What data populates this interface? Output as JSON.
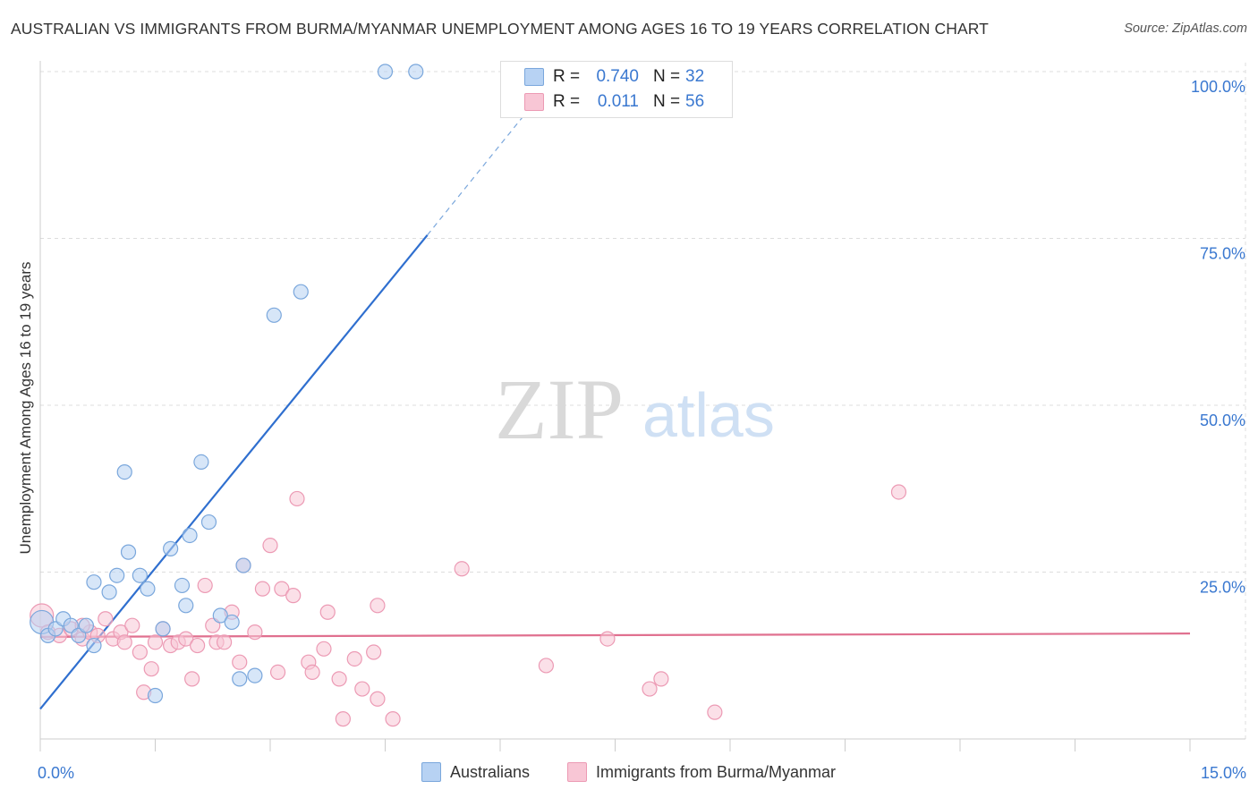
{
  "header": {
    "title": "AUSTRALIAN VS IMMIGRANTS FROM BURMA/MYANMAR UNEMPLOYMENT AMONG AGES 16 TO 19 YEARS CORRELATION CHART",
    "source": "Source: ZipAtlas.com"
  },
  "watermark": {
    "zip": "ZIP",
    "atlas": "atlas"
  },
  "legend": {
    "r_label": "R =",
    "n_label": "N =",
    "rows": [
      {
        "r": "0.740",
        "n": "32"
      },
      {
        "r": "0.011",
        "n": "56"
      }
    ]
  },
  "colors": {
    "blue_fill": "#b7d2f3",
    "blue_stroke": "#7aa7dc",
    "blue_line": "#2f6fcf",
    "pink_fill": "#f8c6d5",
    "pink_stroke": "#ec9ab4",
    "pink_line": "#e0708f",
    "axis_text": "#3a78d0",
    "grid": "#dddddd"
  },
  "chart_data": {
    "type": "scatter",
    "title": "AUSTRALIAN VS IMMIGRANTS FROM BURMA/MYANMAR UNEMPLOYMENT AMONG AGES 16 TO 19 YEARS CORRELATION CHART",
    "xlabel": "",
    "ylabel": "Unemployment Among Ages 16 to 19 years",
    "xlim": [
      0,
      15
    ],
    "ylim": [
      0,
      100
    ],
    "x_tick_labels": [
      "0.0%",
      "15.0%"
    ],
    "y_tick_labels": [
      "25.0%",
      "50.0%",
      "75.0%",
      "100.0%"
    ],
    "y_ticks": [
      25,
      50,
      75,
      100
    ],
    "grid": true,
    "series": [
      {
        "name": "Australians",
        "color": "#b7d2f3",
        "R": 0.74,
        "N": 32,
        "trend": {
          "x0": 0,
          "y0": 4.5,
          "x1": 5.05,
          "y1": 75.5,
          "dashed_to": {
            "x": 6.35,
            "y": 94
          }
        },
        "points": [
          [
            0.02,
            17.5
          ],
          [
            0.1,
            15.5
          ],
          [
            0.2,
            16.5
          ],
          [
            0.3,
            18.0
          ],
          [
            0.4,
            17.0
          ],
          [
            0.5,
            15.5
          ],
          [
            0.6,
            17.0
          ],
          [
            0.7,
            14.0
          ],
          [
            0.7,
            23.5
          ],
          [
            0.9,
            22.0
          ],
          [
            1.0,
            24.5
          ],
          [
            1.1,
            40.0
          ],
          [
            1.15,
            28.0
          ],
          [
            1.3,
            24.5
          ],
          [
            1.4,
            22.5
          ],
          [
            1.5,
            6.5
          ],
          [
            1.6,
            16.5
          ],
          [
            1.7,
            28.5
          ],
          [
            1.85,
            23.0
          ],
          [
            1.9,
            20.0
          ],
          [
            1.95,
            30.5
          ],
          [
            2.1,
            41.5
          ],
          [
            2.2,
            32.5
          ],
          [
            2.35,
            18.5
          ],
          [
            2.5,
            17.5
          ],
          [
            2.6,
            9.0
          ],
          [
            2.65,
            26.0
          ],
          [
            2.8,
            9.5
          ],
          [
            3.05,
            63.5
          ],
          [
            3.4,
            67.0
          ],
          [
            4.5,
            100.0
          ],
          [
            4.9,
            100.0
          ]
        ]
      },
      {
        "name": "Immigrants from Burma/Myanmar",
        "color": "#f8c6d5",
        "R": 0.011,
        "N": 56,
        "trend": {
          "x0": 0,
          "y0": 15.3,
          "x1": 15,
          "y1": 15.8
        },
        "points": [
          [
            0.02,
            18.5
          ],
          [
            0.1,
            16.0
          ],
          [
            0.25,
            15.5
          ],
          [
            0.4,
            16.5
          ],
          [
            0.55,
            15.0
          ],
          [
            0.65,
            16.0
          ],
          [
            0.75,
            15.5
          ],
          [
            0.85,
            18.0
          ],
          [
            0.95,
            15.0
          ],
          [
            1.05,
            16.0
          ],
          [
            1.1,
            14.5
          ],
          [
            1.2,
            17.0
          ],
          [
            1.3,
            13.0
          ],
          [
            1.35,
            7.0
          ],
          [
            1.45,
            10.5
          ],
          [
            1.5,
            14.5
          ],
          [
            1.6,
            16.5
          ],
          [
            1.7,
            14.0
          ],
          [
            1.8,
            14.5
          ],
          [
            1.9,
            15.0
          ],
          [
            1.98,
            9.0
          ],
          [
            2.05,
            14.0
          ],
          [
            2.15,
            23.0
          ],
          [
            2.25,
            17.0
          ],
          [
            2.3,
            14.5
          ],
          [
            2.4,
            14.5
          ],
          [
            2.5,
            19.0
          ],
          [
            2.6,
            11.5
          ],
          [
            2.65,
            26.0
          ],
          [
            2.8,
            16.0
          ],
          [
            2.9,
            22.5
          ],
          [
            3.0,
            29.0
          ],
          [
            3.1,
            10.0
          ],
          [
            3.15,
            22.5
          ],
          [
            3.3,
            21.5
          ],
          [
            3.35,
            36.0
          ],
          [
            3.5,
            11.5
          ],
          [
            3.55,
            10.0
          ],
          [
            3.7,
            13.5
          ],
          [
            3.75,
            19.0
          ],
          [
            3.9,
            9.0
          ],
          [
            3.95,
            3.0
          ],
          [
            4.1,
            12.0
          ],
          [
            4.2,
            7.5
          ],
          [
            4.35,
            13.0
          ],
          [
            4.4,
            6.0
          ],
          [
            4.6,
            3.0
          ],
          [
            5.5,
            25.5
          ],
          [
            4.4,
            20.0
          ],
          [
            6.6,
            11.0
          ],
          [
            7.4,
            15.0
          ],
          [
            7.95,
            7.5
          ],
          [
            8.1,
            9.0
          ],
          [
            8.8,
            4.0
          ],
          [
            11.2,
            37.0
          ],
          [
            0.55,
            17.0
          ]
        ]
      }
    ]
  },
  "bottom_legend": {
    "items": [
      {
        "label": "Australians"
      },
      {
        "label": "Immigrants from Burma/Myanmar"
      }
    ]
  }
}
